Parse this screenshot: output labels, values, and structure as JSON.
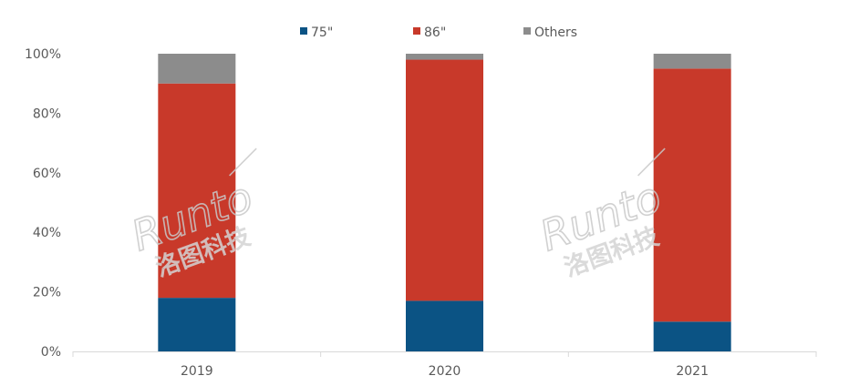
{
  "chart_data": {
    "type": "bar",
    "stacked": true,
    "categories": [
      "2019",
      "2020",
      "2021"
    ],
    "series": [
      {
        "name": "75\"",
        "color": "#0b5384",
        "values": [
          18,
          17,
          10
        ]
      },
      {
        "name": "86\"",
        "color": "#c8392a",
        "values": [
          72,
          81,
          85
        ]
      },
      {
        "name": "Others",
        "color": "#8c8c8c",
        "values": [
          10,
          2,
          5
        ]
      }
    ],
    "ylim": [
      0,
      100
    ],
    "yticks": [
      "0%",
      "20%",
      "40%",
      "60%",
      "80%",
      "100%"
    ],
    "ytick_values": [
      0,
      20,
      40,
      60,
      80,
      100
    ],
    "legend": "top-center",
    "grid": false,
    "title": "",
    "xlabel": "",
    "ylabel": ""
  },
  "watermark": {
    "latin": "Runto",
    "chinese": "洛图科技"
  }
}
